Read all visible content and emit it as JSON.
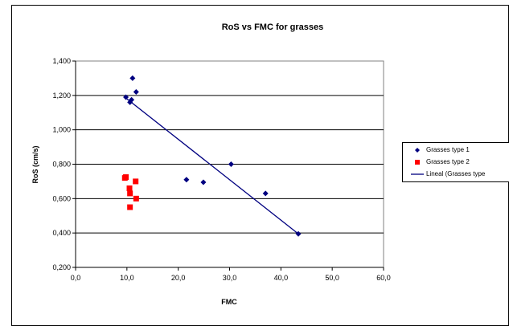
{
  "chart_data": {
    "type": "scatter",
    "title": "RoS vs FMC for grasses",
    "xlabel": "FMC",
    "ylabel": "RoS (cm/s)",
    "xlim": [
      0,
      60
    ],
    "ylim": [
      0.2,
      1.4
    ],
    "x_ticks": [
      "0,0",
      "10,0",
      "20,0",
      "30,0",
      "40,0",
      "50,0",
      "60,0"
    ],
    "y_ticks": [
      "0,200",
      "0,400",
      "0,600",
      "0,800",
      "1,000",
      "1,200",
      "1,400"
    ],
    "grid": "horizontal major gridlines",
    "legend_position": "right",
    "series": [
      {
        "name": "Grasses type 1",
        "marker": "diamond",
        "color": "#000080",
        "points": [
          [
            9.8,
            1.19
          ],
          [
            10.6,
            1.16
          ],
          [
            10.9,
            1.175
          ],
          [
            11.1,
            1.3
          ],
          [
            11.8,
            1.22
          ],
          [
            21.6,
            0.71
          ],
          [
            24.9,
            0.695
          ],
          [
            30.3,
            0.8
          ],
          [
            37.0,
            0.63
          ],
          [
            43.4,
            0.395
          ]
        ]
      },
      {
        "name": "Grasses type 2",
        "marker": "square",
        "color": "#ff0000",
        "points": [
          [
            9.6,
            0.72
          ],
          [
            9.8,
            0.725
          ],
          [
            10.5,
            0.66
          ],
          [
            10.6,
            0.63
          ],
          [
            10.6,
            0.55
          ],
          [
            11.7,
            0.7
          ],
          [
            11.8,
            0.6
          ]
        ]
      },
      {
        "name": "Lineal (Grasses type",
        "marker": "line",
        "color": "#000080",
        "points": [
          [
            10.0,
            1.18
          ],
          [
            43.4,
            0.395
          ]
        ]
      }
    ]
  }
}
